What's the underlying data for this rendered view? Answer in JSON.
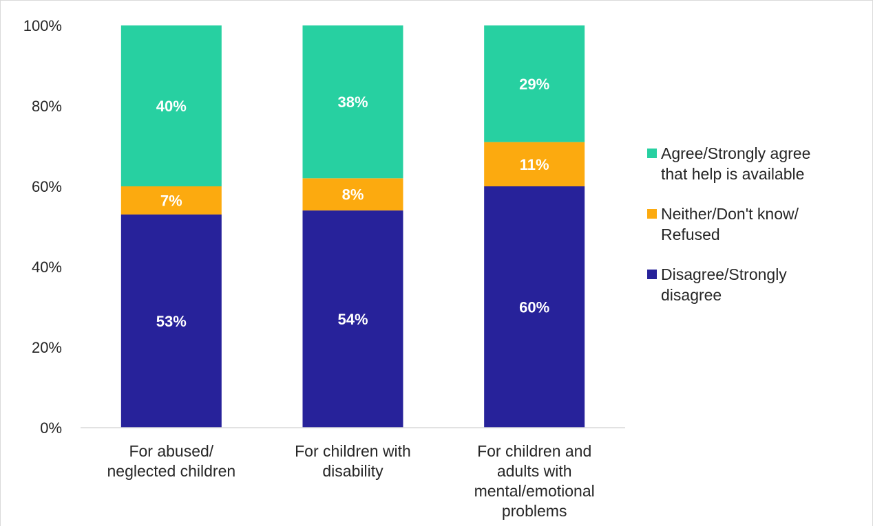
{
  "chart_data": {
    "type": "bar",
    "stacked": true,
    "categories": [
      [
        "For abused/",
        "neglected children"
      ],
      [
        "For children with",
        "disability"
      ],
      [
        "For children and",
        "adults with",
        "mental/emotional",
        "problems"
      ]
    ],
    "series": [
      {
        "name": "Disagree/Strongly disagree",
        "legend_lines": [
          "Disagree/Strongly",
          "disagree"
        ],
        "color": "#27229a",
        "values": [
          53,
          54,
          60
        ],
        "labels": [
          "53%",
          "54%",
          "60%"
        ]
      },
      {
        "name": "Neither/Don't know/ Refused",
        "legend_lines": [
          "Neither/Don't know/",
          "Refused"
        ],
        "color": "#fcaa0f",
        "values": [
          7,
          8,
          11
        ],
        "labels": [
          "7%",
          "8%",
          "11%"
        ]
      },
      {
        "name": "Agree/Strongly agree that help is available",
        "legend_lines": [
          "Agree/Strongly agree",
          "that help is available"
        ],
        "color": "#27d0a1",
        "values": [
          40,
          38,
          29
        ],
        "labels": [
          "40%",
          "38%",
          "29%"
        ]
      }
    ],
    "legend_order": [
      2,
      1,
      0
    ],
    "ylim": [
      0,
      100
    ],
    "yticks": [
      "0%",
      "20%",
      "40%",
      "60%",
      "80%",
      "100%"
    ],
    "grid": false,
    "legend_position": "right",
    "xlabel": "",
    "ylabel": "",
    "title": ""
  }
}
